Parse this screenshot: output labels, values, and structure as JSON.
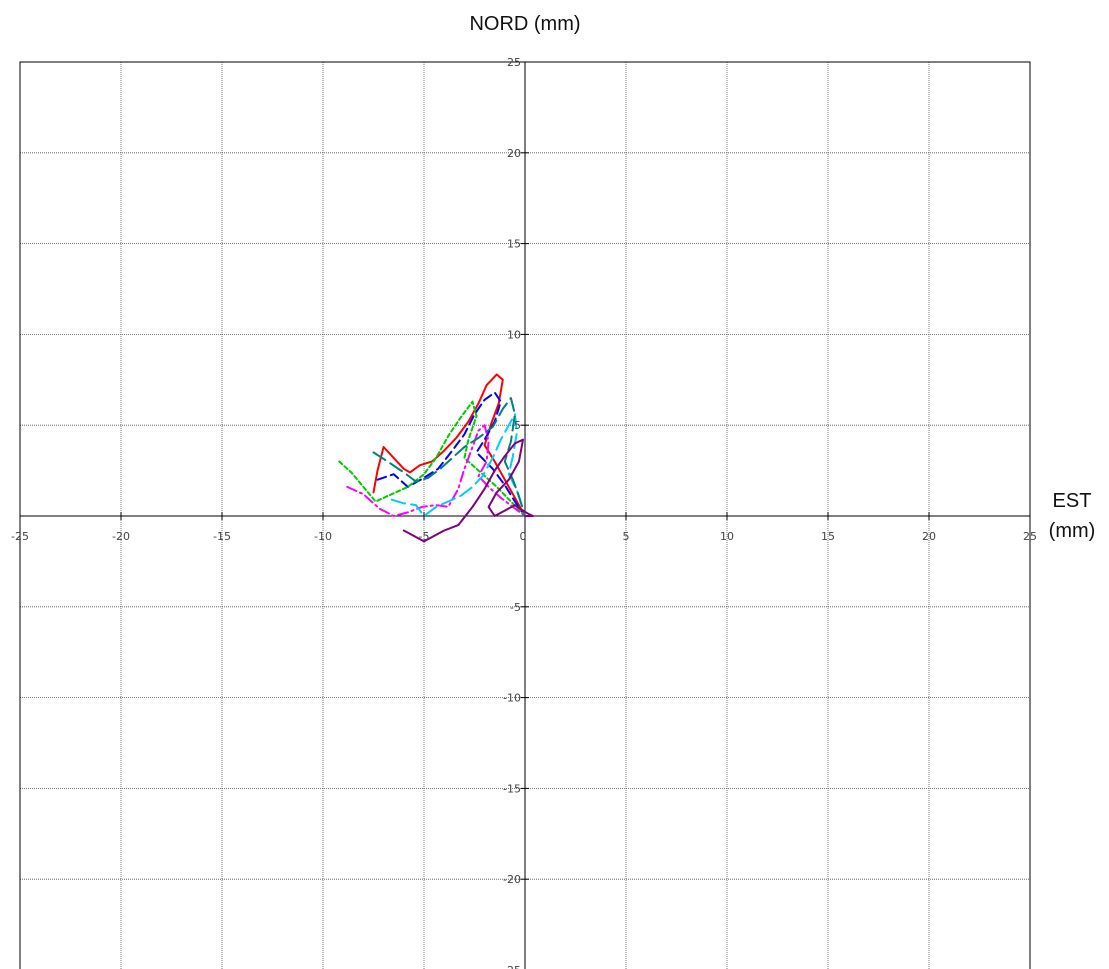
{
  "chart_data": {
    "type": "line",
    "title": "",
    "ylabel": "NORD (mm)",
    "xlabel_lines": [
      "EST",
      "(mm)"
    ],
    "xlim": [
      -25,
      25
    ],
    "ylim": [
      -25,
      25
    ],
    "x_ticks": [
      "-25",
      "-20",
      "-15",
      "-10",
      "-5",
      "0",
      "5",
      "10",
      "15",
      "20",
      "25"
    ],
    "y_ticks": [
      "25",
      "20",
      "15",
      "10",
      "5",
      "-5",
      "-10",
      "-15",
      "-20",
      "-25"
    ],
    "grid": true,
    "series": [
      {
        "color": "#ff0000",
        "style": "solid",
        "points": [
          [
            -7.5,
            1.3
          ],
          [
            -7.3,
            2.5
          ],
          [
            -7,
            3.8
          ],
          [
            -6.5,
            3.2
          ],
          [
            -6,
            2.6
          ],
          [
            -5.7,
            2.4
          ],
          [
            -5.2,
            2.8
          ],
          [
            -4.6,
            3.0
          ],
          [
            -4,
            3.6
          ],
          [
            -3.4,
            4.3
          ],
          [
            -2.8,
            5.2
          ],
          [
            -2.3,
            6.2
          ],
          [
            -1.9,
            7.2
          ],
          [
            -1.4,
            7.8
          ],
          [
            -1.1,
            7.5
          ],
          [
            -1.3,
            6.2
          ],
          [
            -1.7,
            5.0
          ],
          [
            -2.0,
            3.9
          ],
          [
            -1.5,
            3.0
          ],
          [
            -1.0,
            2.0
          ],
          [
            -0.5,
            1.0
          ],
          [
            0,
            0
          ]
        ]
      },
      {
        "color": "#0000ff",
        "style": "dashed",
        "points": [
          [
            -7.3,
            2.0
          ],
          [
            -6.5,
            2.3
          ],
          [
            -5.8,
            1.6
          ],
          [
            -5.0,
            2.1
          ],
          [
            -4.3,
            2.6
          ],
          [
            -3.6,
            3.6
          ],
          [
            -3.0,
            4.5
          ],
          [
            -2.5,
            5.6
          ],
          [
            -2.0,
            6.4
          ],
          [
            -1.5,
            6.8
          ],
          [
            -1.2,
            6.3
          ],
          [
            -1.5,
            5.2
          ],
          [
            -2.0,
            4.2
          ],
          [
            -2.4,
            3.5
          ],
          [
            -1.6,
            2.6
          ],
          [
            -1.0,
            1.7
          ],
          [
            -0.5,
            0.8
          ],
          [
            0,
            0
          ]
        ]
      },
      {
        "color": "#00cc00",
        "style": "shortdash",
        "points": [
          [
            -9.2,
            3.0
          ],
          [
            -8.6,
            2.4
          ],
          [
            -8.0,
            1.6
          ],
          [
            -7.4,
            0.8
          ],
          [
            -6.6,
            1.2
          ],
          [
            -5.8,
            1.6
          ],
          [
            -5.0,
            2.3
          ],
          [
            -4.4,
            3.2
          ],
          [
            -3.8,
            4.4
          ],
          [
            -3.2,
            5.4
          ],
          [
            -2.6,
            6.3
          ],
          [
            -2.4,
            5.5
          ],
          [
            -2.8,
            4.2
          ],
          [
            -3.0,
            3.2
          ],
          [
            -2.2,
            2.4
          ],
          [
            -1.4,
            1.6
          ],
          [
            -0.7,
            0.8
          ],
          [
            0,
            0
          ]
        ]
      },
      {
        "color": "#ff00ff",
        "style": "dashdot",
        "points": [
          [
            -8.8,
            1.6
          ],
          [
            -8,
            1.2
          ],
          [
            -7.2,
            0.4
          ],
          [
            -6.5,
            0.0
          ],
          [
            -5.8,
            0.2
          ],
          [
            -5.1,
            0.5
          ],
          [
            -4.4,
            0.6
          ],
          [
            -3.8,
            0.5
          ],
          [
            -3.3,
            1.5
          ],
          [
            -3.0,
            2.6
          ],
          [
            -2.6,
            3.8
          ],
          [
            -2.3,
            4.7
          ],
          [
            -2.0,
            5.0
          ],
          [
            -1.8,
            4.1
          ],
          [
            -1.9,
            3.0
          ],
          [
            -2.3,
            2.2
          ],
          [
            -1.8,
            1.6
          ],
          [
            -1.2,
            1.0
          ],
          [
            -0.6,
            0.5
          ],
          [
            0,
            0
          ]
        ]
      },
      {
        "color": "#00ccff",
        "style": "longdash",
        "points": [
          [
            -6.6,
            0.9
          ],
          [
            -6.0,
            0.7
          ],
          [
            -5.4,
            0.6
          ],
          [
            -5.0,
            0.0
          ],
          [
            -4.4,
            0.5
          ],
          [
            -3.8,
            0.8
          ],
          [
            -3.2,
            1.1
          ],
          [
            -2.6,
            1.6
          ],
          [
            -2.1,
            2.2
          ],
          [
            -1.6,
            3.2
          ],
          [
            -1.2,
            4.2
          ],
          [
            -0.8,
            5.0
          ],
          [
            -0.5,
            5.6
          ],
          [
            -0.4,
            4.6
          ],
          [
            -0.6,
            3.3
          ],
          [
            -0.8,
            2.3
          ],
          [
            -0.4,
            1.4
          ],
          [
            -0.2,
            0.7
          ],
          [
            0,
            0
          ]
        ]
      },
      {
        "color": "#008080",
        "style": "longdash",
        "points": [
          [
            -7.5,
            3.5
          ],
          [
            -6.8,
            3.0
          ],
          [
            -6.0,
            2.4
          ],
          [
            -5.4,
            1.9
          ],
          [
            -4.8,
            2.1
          ],
          [
            -4.2,
            2.6
          ],
          [
            -3.6,
            3.2
          ],
          [
            -3.0,
            3.8
          ],
          [
            -2.3,
            4.3
          ],
          [
            -1.6,
            4.9
          ],
          [
            -1.1,
            5.9
          ],
          [
            -0.7,
            6.5
          ],
          [
            -0.5,
            5.6
          ],
          [
            -0.7,
            4.1
          ],
          [
            -1.0,
            3.0
          ],
          [
            -0.6,
            2.0
          ],
          [
            -0.3,
            1.1
          ],
          [
            0,
            0
          ]
        ]
      },
      {
        "color": "#800080",
        "style": "solid",
        "points": [
          [
            -6.0,
            -0.8
          ],
          [
            -5.0,
            -1.4
          ],
          [
            -4.0,
            -0.8
          ],
          [
            -3.3,
            -0.5
          ],
          [
            -2.6,
            0.5
          ],
          [
            -2.0,
            1.5
          ],
          [
            -1.5,
            2.5
          ],
          [
            -1.0,
            3.3
          ],
          [
            -0.5,
            4.0
          ],
          [
            -0.1,
            4.2
          ],
          [
            -0.3,
            3.0
          ],
          [
            -0.8,
            2.0
          ],
          [
            -1.4,
            1.3
          ],
          [
            -1.8,
            0.5
          ],
          [
            -1.5,
            0.0
          ],
          [
            -1.0,
            0.3
          ],
          [
            -0.5,
            0.6
          ],
          [
            -0.1,
            0.3
          ],
          [
            0.2,
            0.1
          ],
          [
            0.4,
            0.0
          ],
          [
            0,
            0
          ]
        ]
      }
    ]
  }
}
